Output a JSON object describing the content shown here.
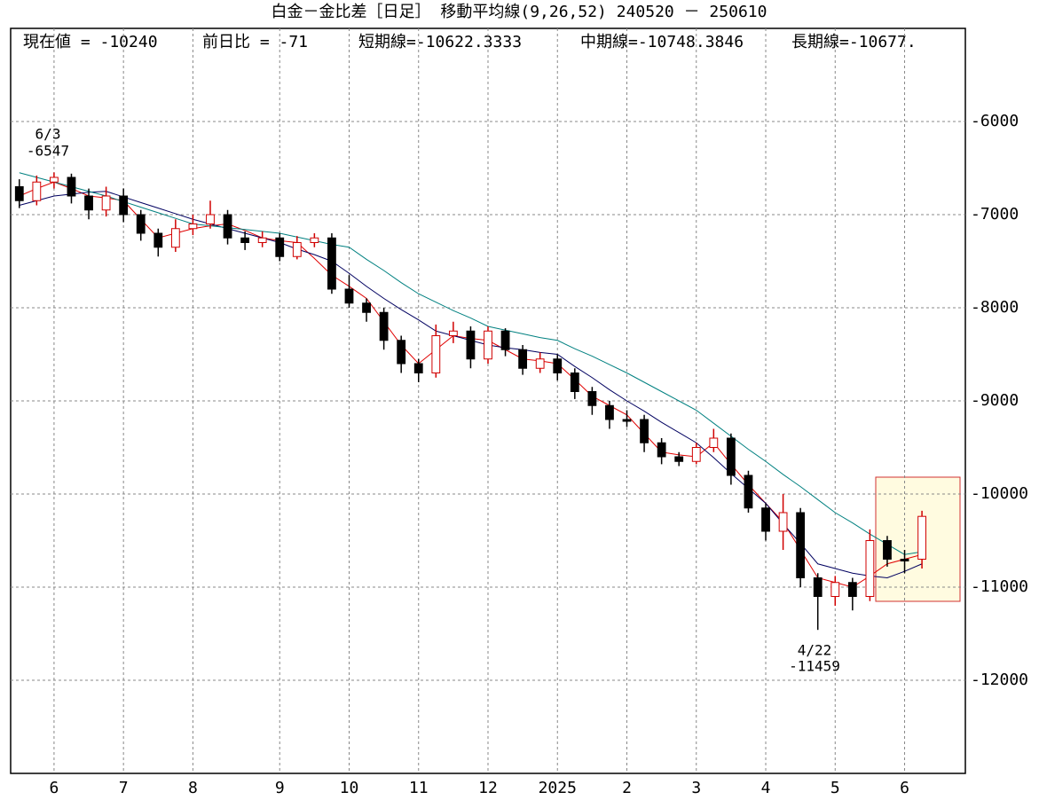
{
  "chart_data": {
    "type": "candlestick",
    "title": "白金－金比差［日足］ 移動平均線(9,26,52)  240520 － 250610",
    "info": [
      "現在値 = -10240",
      "前日比 = -71",
      "短期線=-10622.3333",
      "中期線=-10748.3846",
      "長期線=-10677."
    ],
    "categories": [
      null,
      null,
      "6",
      null,
      null,
      null,
      "7",
      null,
      null,
      null,
      "8",
      null,
      null,
      null,
      null,
      "9",
      null,
      null,
      null,
      "10",
      null,
      null,
      null,
      "11",
      null,
      null,
      null,
      "12",
      null,
      null,
      null,
      "2025",
      null,
      null,
      null,
      "2",
      null,
      null,
      null,
      "3",
      null,
      null,
      null,
      "4",
      null,
      null,
      null,
      "5",
      null,
      null,
      null,
      "6",
      null,
      null,
      null
    ],
    "open": [
      -6700,
      -6850,
      -6650,
      -6600,
      -6800,
      -6950,
      -6800,
      -7000,
      -7200,
      -7350,
      -7150,
      -7100,
      -7000,
      -7250,
      -7300,
      -7250,
      -7450,
      -7300,
      -7250,
      -7800,
      -7950,
      -8050,
      -8350,
      -8600,
      -8700,
      -8300,
      -8250,
      -8550,
      -8250,
      -8450,
      -8650,
      -8550,
      -8700,
      -8900,
      -9050,
      -9200,
      -9200,
      -9450,
      -9600,
      -9650,
      -9500,
      -9400,
      -9800,
      -10150,
      -10400,
      -10200,
      -10900,
      -11100,
      -10950,
      -11100,
      -10500,
      -10700,
      -10700,
      null,
      null
    ],
    "high": [
      -6620,
      -6580,
      -6547,
      -6560,
      -6720,
      -6700,
      -6720,
      -6950,
      -7150,
      -7050,
      -7000,
      -6850,
      -6950,
      -7180,
      -7180,
      -7200,
      -7230,
      -7200,
      -7200,
      -7650,
      -7900,
      -8000,
      -8300,
      -8550,
      -8180,
      -8150,
      -8200,
      -8200,
      -8220,
      -8400,
      -8480,
      -8500,
      -8650,
      -8850,
      -9000,
      -9100,
      -9150,
      -9400,
      -9550,
      -9450,
      -9300,
      -9350,
      -9750,
      -10100,
      -10000,
      -10150,
      -10850,
      -10880,
      -10900,
      -10380,
      -10450,
      -10600,
      -10180,
      null,
      null
    ],
    "low": [
      -6930,
      -6900,
      -6720,
      -6880,
      -7050,
      -7020,
      -7080,
      -7280,
      -7450,
      -7400,
      -7220,
      -7150,
      -7320,
      -7380,
      -7350,
      -7500,
      -7480,
      -7350,
      -7850,
      -8000,
      -8150,
      -8450,
      -8700,
      -8800,
      -8750,
      -8380,
      -8650,
      -8600,
      -8520,
      -8720,
      -8700,
      -8780,
      -8980,
      -9150,
      -9300,
      -9280,
      -9550,
      -9680,
      -9700,
      -9680,
      -9550,
      -9900,
      -10200,
      -10500,
      -10600,
      -11000,
      -11459,
      -11200,
      -11250,
      -11150,
      -10780,
      -10850,
      -10800,
      null,
      null
    ],
    "close": [
      -6850,
      -6650,
      -6600,
      -6800,
      -6950,
      -6800,
      -7000,
      -7200,
      -7350,
      -7150,
      -7100,
      -7000,
      -7250,
      -7300,
      -7250,
      -7450,
      -7300,
      -7250,
      -7800,
      -7950,
      -8050,
      -8350,
      -8600,
      -8700,
      -8300,
      -8250,
      -8550,
      -8250,
      -8450,
      -8650,
      -8550,
      -8700,
      -8900,
      -9050,
      -9200,
      -9200,
      -9450,
      -9600,
      -9650,
      -9500,
      -9400,
      -9800,
      -10150,
      -10400,
      -10200,
      -10900,
      -11100,
      -10950,
      -11100,
      -10500,
      -10700,
      -10700,
      -10240,
      null,
      null
    ],
    "up_color": "#d00000",
    "down_color": "#000000",
    "series": [
      {
        "color": "#e00000",
        "values": [
          -6800,
          -6720,
          -6650,
          -6720,
          -6800,
          -6820,
          -6850,
          -7050,
          -7250,
          -7200,
          -7150,
          -7120,
          -7100,
          -7170,
          -7250,
          -7280,
          -7300,
          -7470,
          -7650,
          -7770,
          -7900,
          -8150,
          -8400,
          -8600,
          -8450,
          -8300,
          -8330,
          -8350,
          -8450,
          -8550,
          -8570,
          -8600,
          -8770,
          -8950,
          -9050,
          -9150,
          -9350,
          -9550,
          -9580,
          -9600,
          -9450,
          -9680,
          -9900,
          -10100,
          -10300,
          -10600,
          -10900,
          -10950,
          -11000,
          -10880,
          -10750,
          -10700,
          -10650,
          null,
          null
        ]
      },
      {
        "color": "#000060",
        "values": [
          -6900,
          -6850,
          -6800,
          -6780,
          -6760,
          -6750,
          -6810,
          -6870,
          -6930,
          -6990,
          -7050,
          -7100,
          -7150,
          -7200,
          -7250,
          -7300,
          -7370,
          -7430,
          -7500,
          -7630,
          -7770,
          -7900,
          -8020,
          -8130,
          -8250,
          -8300,
          -8350,
          -8400,
          -8430,
          -8450,
          -8480,
          -8500,
          -8630,
          -8750,
          -8880,
          -9000,
          -9110,
          -9230,
          -9340,
          -9450,
          -9610,
          -9780,
          -9940,
          -10100,
          -10320,
          -10530,
          -10750,
          -10800,
          -10850,
          -10880,
          -10900,
          -10830,
          -10750,
          null,
          null
        ]
      },
      {
        "color": "#008080",
        "values": [
          -6550,
          -6600,
          -6650,
          -6700,
          -6750,
          -6800,
          -6860,
          -6920,
          -6980,
          -7040,
          -7100,
          -7120,
          -7140,
          -7160,
          -7180,
          -7200,
          -7240,
          -7280,
          -7320,
          -7350,
          -7480,
          -7600,
          -7730,
          -7850,
          -7940,
          -8030,
          -8110,
          -8200,
          -8240,
          -8280,
          -8320,
          -8350,
          -8440,
          -8520,
          -8610,
          -8700,
          -8800,
          -8900,
          -9000,
          -9100,
          -9240,
          -9380,
          -9520,
          -9650,
          -9790,
          -9920,
          -10060,
          -10200,
          -10310,
          -10430,
          -10540,
          -10650,
          -10620,
          null,
          null
        ]
      }
    ],
    "annotations": [
      {
        "date": "6/3",
        "label": "-6547"
      },
      {
        "date": "4/22",
        "label": "-11459"
      }
    ],
    "ylim": [
      -13000,
      -5000
    ],
    "yticks": [
      -6000,
      -7000,
      -8000,
      -9000,
      -10000,
      -11000,
      -12000
    ],
    "grid": true
  }
}
